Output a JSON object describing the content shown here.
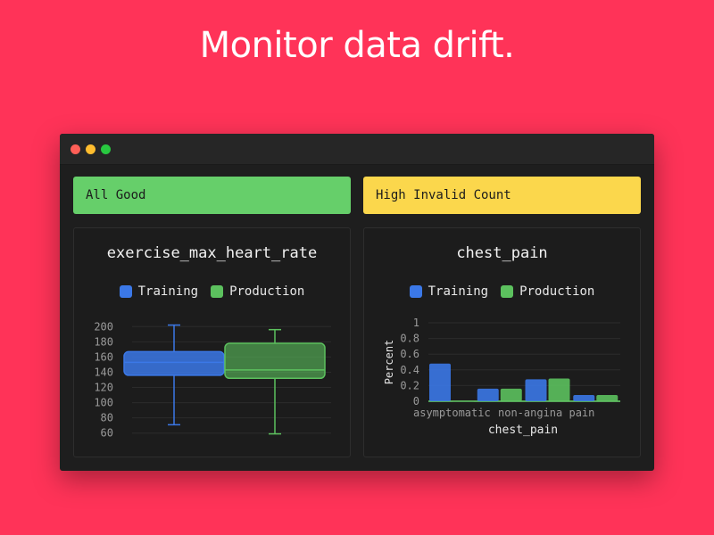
{
  "headline": "Monitor data drift.",
  "banners": {
    "left": {
      "label": "All Good",
      "color": "#66cf6a"
    },
    "right": {
      "label": "High Invalid Count",
      "color": "#fbd74c"
    }
  },
  "legend": {
    "training": "Training",
    "production": "Production"
  },
  "colors": {
    "training": "#3b78e7",
    "production": "#5cc15e"
  },
  "chart_data": [
    {
      "type": "box",
      "title": "exercise_max_heart_rate",
      "ylim": [
        55,
        205
      ],
      "yticks": [
        200,
        180,
        160,
        140,
        120,
        100,
        80,
        60
      ],
      "series": [
        {
          "name": "Training",
          "min": 71,
          "q1": 136,
          "median": 153,
          "q3": 167,
          "max": 202
        },
        {
          "name": "Production",
          "min": 59,
          "q1": 132,
          "median": 143,
          "q3": 178,
          "max": 196
        }
      ]
    },
    {
      "type": "bar",
      "title": "chest_pain",
      "xlabel": "chest_pain",
      "ylabel": "Percent",
      "ylim": [
        0,
        1
      ],
      "yticks": [
        "1",
        "0.8",
        "0.6",
        "0.4",
        "0.2",
        "0"
      ],
      "category_labels": [
        "asymptomatic",
        "non-angina pain"
      ],
      "series": [
        {
          "name": "Training",
          "values": [
            0.48,
            0.16,
            0.28,
            0.08
          ]
        },
        {
          "name": "Production",
          "values": [
            0.0,
            0.16,
            0.29,
            0.08
          ]
        }
      ]
    }
  ]
}
